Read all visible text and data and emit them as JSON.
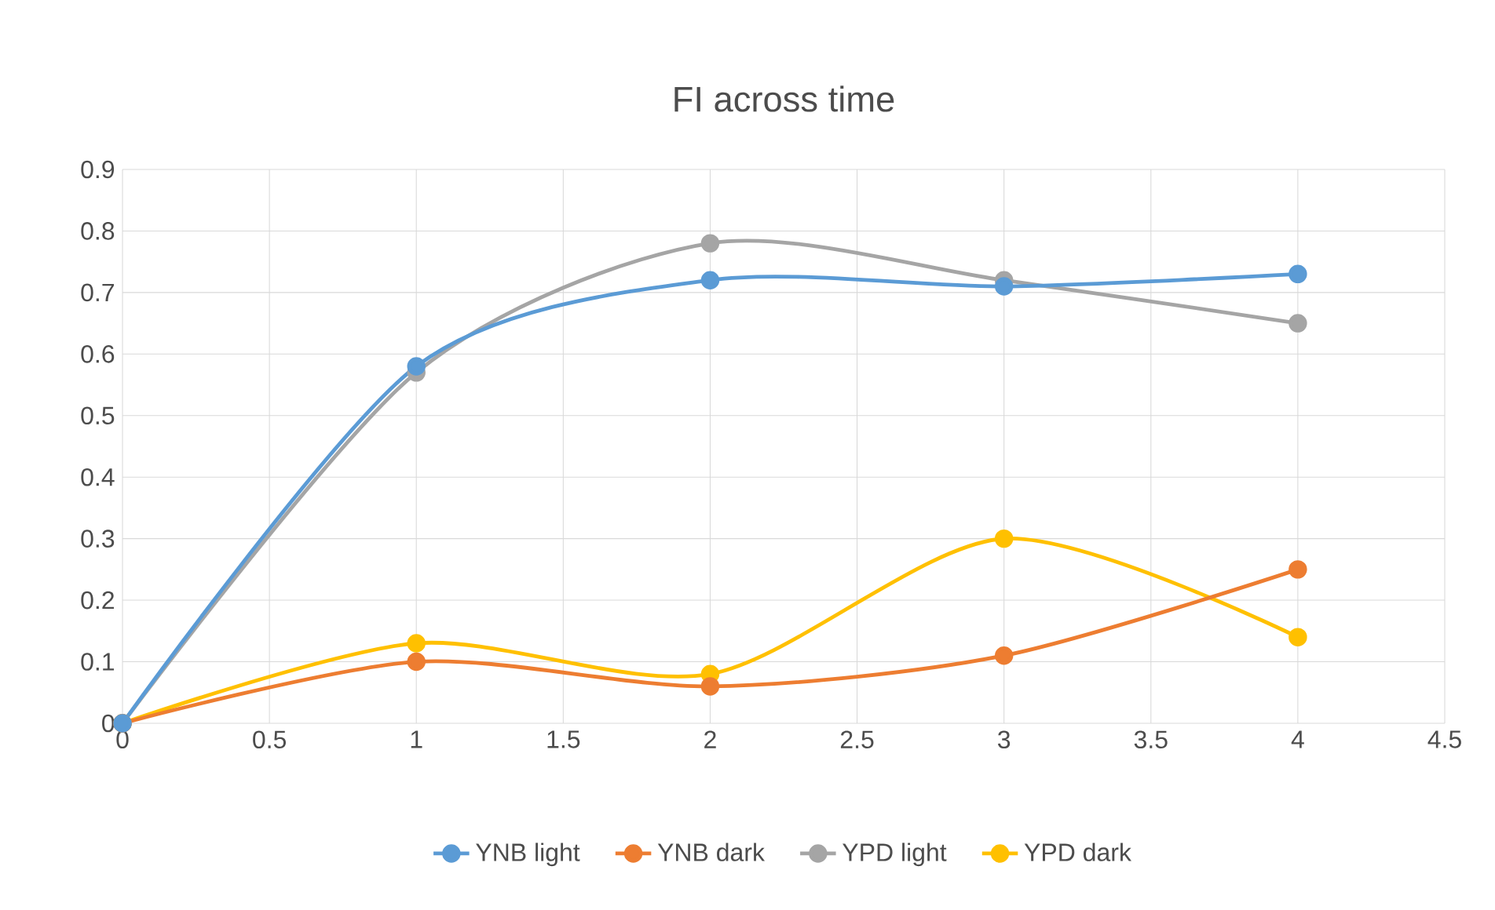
{
  "chart_data": {
    "type": "line",
    "title": "FI across time",
    "x": [
      0,
      1,
      2,
      3,
      4
    ],
    "series": [
      {
        "name": "YNB light",
        "color": "#5b9bd5",
        "values": [
          0,
          0.58,
          0.72,
          0.71,
          0.73
        ]
      },
      {
        "name": "YNB dark",
        "color": "#ed7d31",
        "values": [
          0,
          0.1,
          0.06,
          0.11,
          0.25
        ]
      },
      {
        "name": "YPD light",
        "color": "#a5a5a5",
        "values": [
          0,
          0.57,
          0.78,
          0.72,
          0.65
        ]
      },
      {
        "name": "YPD dark",
        "color": "#ffc000",
        "values": [
          0,
          0.13,
          0.08,
          0.3,
          0.14
        ]
      }
    ],
    "xlim": [
      0,
      4.5
    ],
    "xticks": [
      0,
      0.5,
      1,
      1.5,
      2,
      2.5,
      3,
      3.5,
      4,
      4.5
    ],
    "ylim": [
      0,
      0.9
    ],
    "yticks": [
      0,
      0.1,
      0.2,
      0.3,
      0.4,
      0.5,
      0.6,
      0.7,
      0.8,
      0.9
    ],
    "grid": true,
    "legend": "bottom",
    "marker": "circle",
    "line_style": "solid"
  }
}
